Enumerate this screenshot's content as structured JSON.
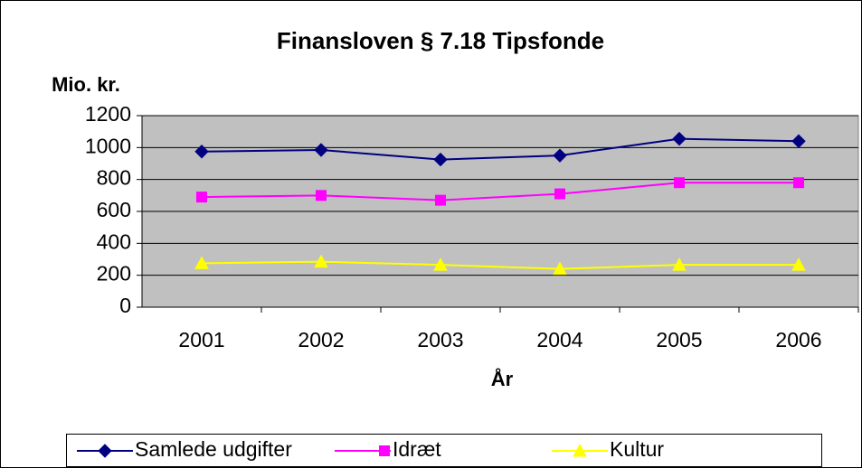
{
  "chart_data": {
    "type": "line",
    "title": "Finansloven § 7.18 Tipsfonde",
    "y_label": "Mio. kr.",
    "x_label": "År",
    "categories": [
      "2001",
      "2002",
      "2003",
      "2004",
      "2005",
      "2006"
    ],
    "series": [
      {
        "name": "Samlede udgifter",
        "color": "#000080",
        "marker": "diamond",
        "values": [
          975,
          985,
          925,
          950,
          1055,
          1040
        ]
      },
      {
        "name": "Idræt",
        "color": "#ff00ff",
        "marker": "square",
        "values": [
          690,
          700,
          670,
          710,
          780,
          780
        ]
      },
      {
        "name": "Kultur",
        "color": "#ffff00",
        "marker": "triangle",
        "values": [
          275,
          285,
          265,
          240,
          265,
          265
        ]
      }
    ],
    "ylim": [
      0,
      1200
    ],
    "yticks": [
      0,
      200,
      400,
      600,
      800,
      1000,
      1200
    ],
    "grid": true,
    "plot_background": "#c0c0c0",
    "legend": "bottom"
  }
}
